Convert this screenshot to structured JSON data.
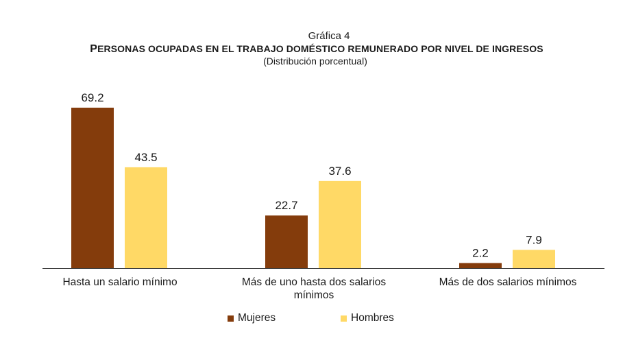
{
  "chart_data": {
    "type": "bar",
    "label": "Gráfica 4",
    "title_first_letter": "P",
    "title_rest": "ERSONAS OCUPADAS EN EL TRABAJO DOMÉSTICO REMUNERADO POR NIVEL DE INGRESOS",
    "subtitle": "(Distribución porcentual)",
    "categories": [
      "Hasta un salario mínimo",
      "Más de uno hasta dos salarios mínimos",
      "Más de dos salarios mínimos"
    ],
    "series": [
      {
        "name": "Mujeres",
        "color": "#843C0C",
        "values": [
          69.2,
          22.7,
          2.2
        ],
        "labels": [
          "69.2",
          "22.7",
          "2.2"
        ]
      },
      {
        "name": "Hombres",
        "color": "#FFD966",
        "values": [
          43.5,
          37.6,
          7.9
        ],
        "labels": [
          "43.5",
          "37.6",
          "7.9"
        ]
      }
    ],
    "ylim": [
      0,
      69.2
    ],
    "grid": false,
    "legend_position": "bottom"
  }
}
